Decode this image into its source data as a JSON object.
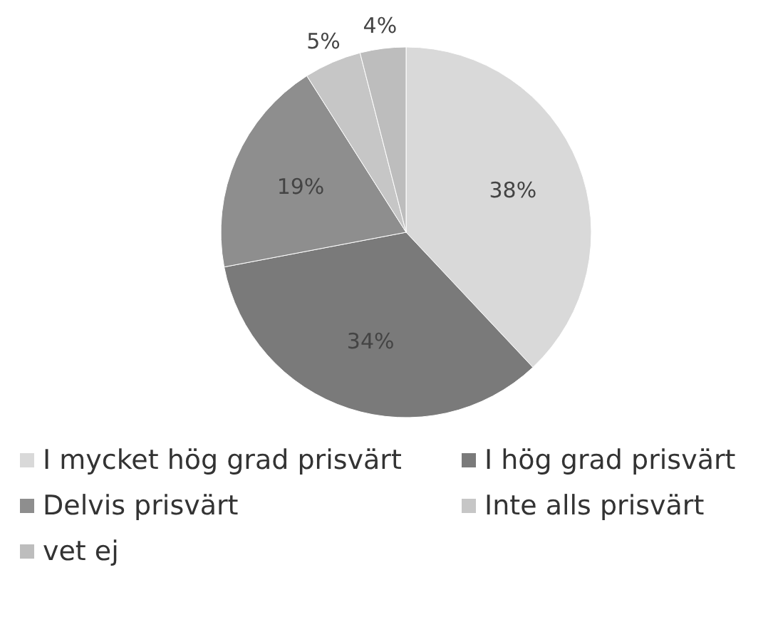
{
  "chart_data": {
    "type": "pie",
    "categories": [
      "I mycket hög grad prisvärt",
      "I hög grad prisvärt",
      "Delvis prisvärt",
      "Inte alls prisvärt",
      "vet ej"
    ],
    "values": [
      38,
      34,
      19,
      5,
      4
    ],
    "colors": [
      "#d9d9d9",
      "#7a7a7a",
      "#8e8e8e",
      "#c6c6c6",
      "#bdbdbd"
    ],
    "value_labels": [
      "38%",
      "34%",
      "19%",
      "5%",
      "4%"
    ],
    "legend": "bottom"
  }
}
